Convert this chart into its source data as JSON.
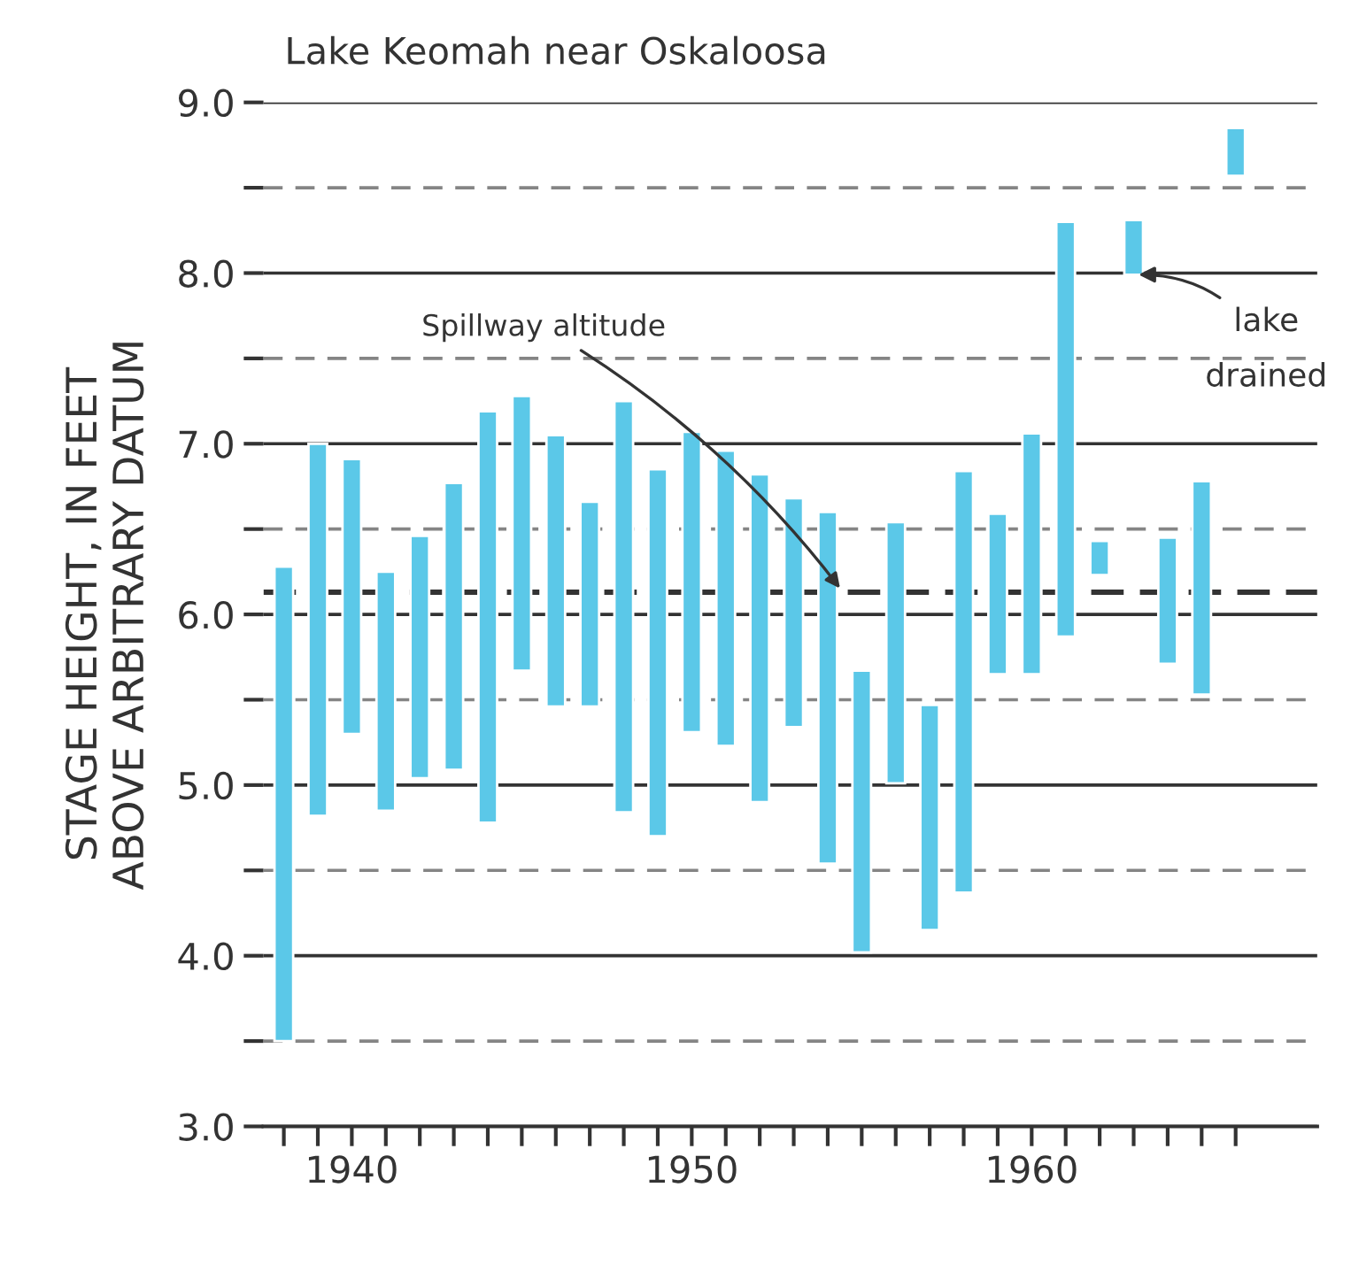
{
  "chart_data": {
    "type": "bar",
    "title": "Lake Keomah near Oskaloosa",
    "ylabel": "STAGE HEIGHT, IN FEET\nABOVE ARBITRARY DATUM",
    "x": [
      1938,
      1939,
      1940,
      1941,
      1942,
      1943,
      1944,
      1945,
      1946,
      1947,
      1948,
      1949,
      1950,
      1951,
      1952,
      1953,
      1954,
      1955,
      1956,
      1957,
      1958,
      1959,
      1960,
      1961,
      1962,
      1963,
      1964,
      1965,
      1966
    ],
    "base": [
      3.5,
      4.82,
      5.3,
      4.85,
      5.04,
      5.09,
      4.78,
      5.67,
      5.46,
      5.46,
      4.84,
      4.7,
      5.31,
      5.23,
      4.9,
      5.34,
      4.54,
      4.02,
      5.01,
      4.15,
      4.37,
      5.65,
      5.65,
      5.87,
      6.23,
      7.99,
      5.71,
      5.53,
      8.57
    ],
    "values": [
      2.78,
      2.18,
      1.61,
      1.4,
      1.42,
      1.68,
      2.41,
      1.61,
      1.59,
      1.2,
      2.41,
      2.15,
      1.76,
      1.73,
      1.92,
      1.34,
      2.06,
      1.65,
      1.53,
      1.32,
      2.47,
      0.94,
      1.41,
      2.43,
      0.2,
      0.32,
      0.74,
      1.25,
      0.28
    ],
    "color": "#5bc8e8",
    "xlim": [
      1937.4,
      1968.4
    ],
    "xticks": [
      {
        "value": 1938,
        "label": null
      },
      {
        "value": 1939,
        "label": null
      },
      {
        "value": 1940,
        "label": "1940"
      },
      {
        "value": 1941,
        "label": null
      },
      {
        "value": 1942,
        "label": null
      },
      {
        "value": 1943,
        "label": null
      },
      {
        "value": 1944,
        "label": null
      },
      {
        "value": 1945,
        "label": null
      },
      {
        "value": 1946,
        "label": null
      },
      {
        "value": 1947,
        "label": null
      },
      {
        "value": 1948,
        "label": null
      },
      {
        "value": 1949,
        "label": null
      },
      {
        "value": 1950,
        "label": "1950"
      },
      {
        "value": 1951,
        "label": null
      },
      {
        "value": 1952,
        "label": null
      },
      {
        "value": 1953,
        "label": null
      },
      {
        "value": 1954,
        "label": null
      },
      {
        "value": 1955,
        "label": null
      },
      {
        "value": 1956,
        "label": null
      },
      {
        "value": 1957,
        "label": null
      },
      {
        "value": 1958,
        "label": null
      },
      {
        "value": 1959,
        "label": null
      },
      {
        "value": 1960,
        "label": "1960"
      },
      {
        "value": 1961,
        "label": null
      },
      {
        "value": 1962,
        "label": null
      },
      {
        "value": 1963,
        "label": null
      },
      {
        "value": 1964,
        "label": null
      },
      {
        "value": 1965,
        "label": null
      },
      {
        "value": 1966,
        "label": null
      }
    ],
    "ylim": [
      3.0,
      9.0
    ],
    "yticks": [
      {
        "value": 3.0,
        "label": "3.0"
      },
      {
        "value": 3.5,
        "label": null
      },
      {
        "value": 4.0,
        "label": "4.0"
      },
      {
        "value": 4.5,
        "label": null
      },
      {
        "value": 5.0,
        "label": "5.0"
      },
      {
        "value": 5.5,
        "label": null
      },
      {
        "value": 6.0,
        "label": "6.0"
      },
      {
        "value": 6.5,
        "label": null
      },
      {
        "value": 7.0,
        "label": "7.0"
      },
      {
        "value": 7.5,
        "label": null
      },
      {
        "value": 8.0,
        "label": "8.0"
      },
      {
        "value": 8.5,
        "label": null
      },
      {
        "value": 9.0,
        "label": "9.0"
      }
    ],
    "grid": "y",
    "ref_lines": [
      {
        "axis": "y",
        "value": 6.13,
        "label": "Spillway altitude",
        "line_style": "dashed",
        "color": "#333333"
      }
    ],
    "annotations": [
      {
        "text": "lake\ndrained",
        "x": 1963,
        "y": 7.99
      }
    ]
  }
}
